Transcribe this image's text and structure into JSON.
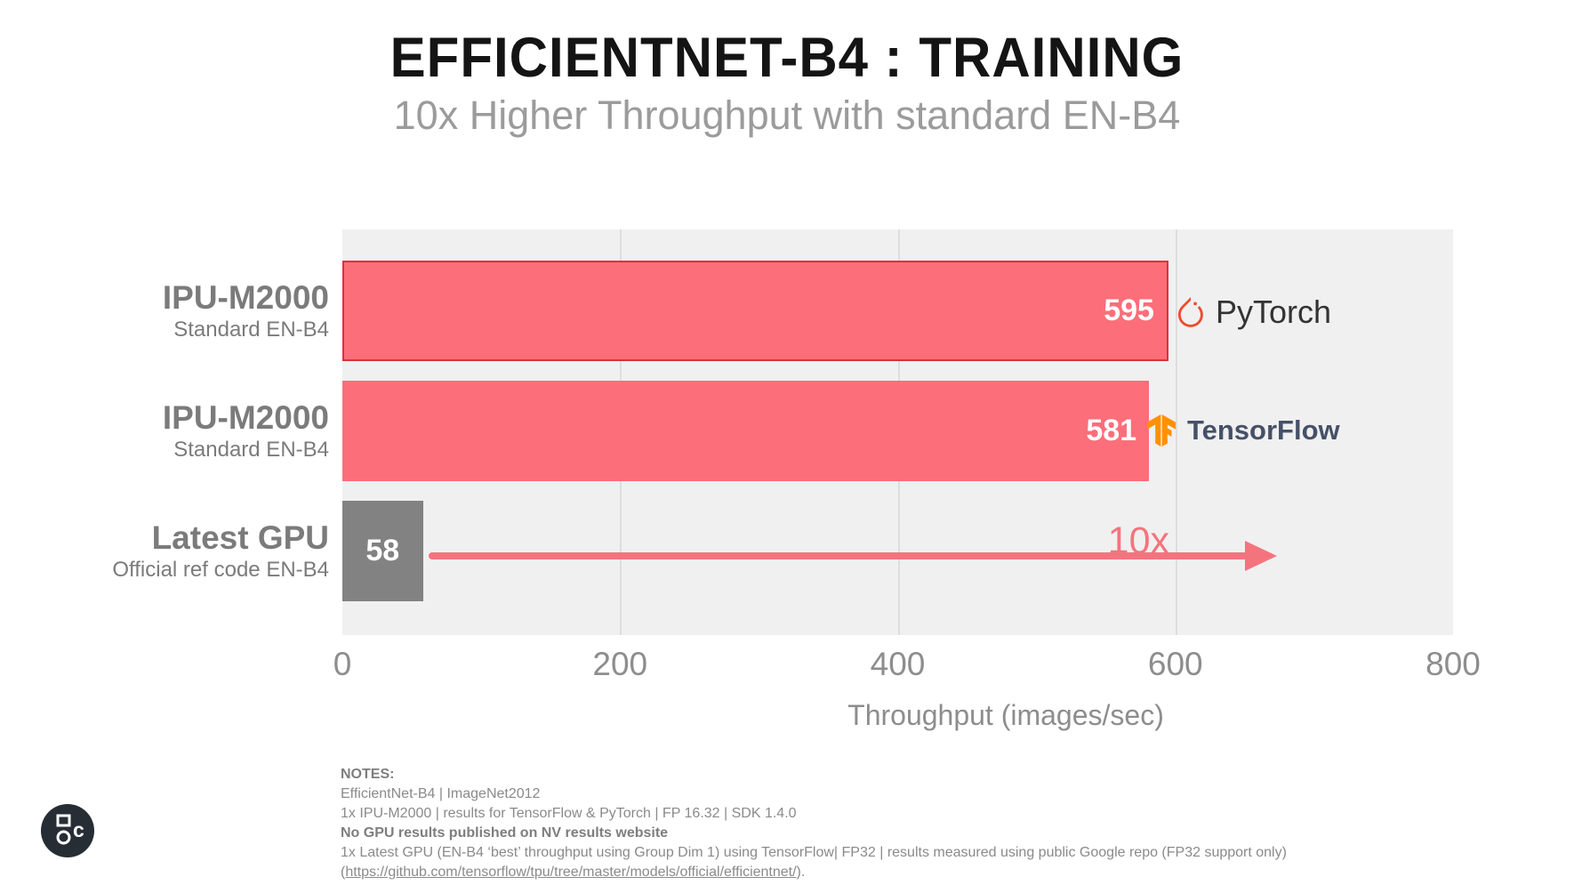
{
  "header": {
    "title": "EFFICIENTNET-B4 : TRAINING",
    "subtitle": "10x Higher Throughput with standard EN-B4"
  },
  "chart_data": {
    "type": "bar",
    "orientation": "horizontal",
    "title": "EFFICIENTNET-B4 : TRAINING",
    "subtitle": "10x Higher Throughput with standard EN-B4",
    "categories": [
      "IPU-M2000 (Standard EN-B4, PyTorch)",
      "IPU-M2000 (Standard EN-B4, TensorFlow)",
      "Latest GPU (Official ref code EN-B4)"
    ],
    "values": [
      595,
      581,
      58
    ],
    "xlabel": "Throughput (images/sec)",
    "xlim": [
      0,
      800
    ],
    "xticks": [
      0,
      200,
      400,
      600,
      800
    ],
    "grid": "vertical",
    "annotation": "10x",
    "bar_colors": [
      "#fc6e79",
      "#fc6e79",
      "#828282"
    ]
  },
  "rows": [
    {
      "label": "IPU-M2000",
      "sublabel": "Standard EN-B4",
      "value": "595",
      "framework": "PyTorch"
    },
    {
      "label": "IPU-M2000",
      "sublabel": "Standard EN-B4",
      "value": "581",
      "framework": "TensorFlow"
    },
    {
      "label": "Latest GPU",
      "sublabel": "Official ref code EN-B4",
      "value": "58",
      "annotation": "10x"
    }
  ],
  "axis": {
    "xlabel": "Throughput (images/sec)"
  },
  "logos": {
    "pytorch": "PyTorch",
    "tensorflow": "TensorFlow"
  },
  "notes": {
    "heading": "NOTES:",
    "lines": [
      {
        "text": "EfficientNet-B4 | ImageNet2012",
        "bold": false
      },
      {
        "text": "1x IPU-M2000 | results for TensorFlow & PyTorch | FP 16.32 | SDK 1.4.0",
        "bold": false
      },
      {
        "text": "No GPU results published on NV results website",
        "bold": true
      },
      {
        "text": "1x Latest GPU (EN-B4 ‘best’ throughput using Group Dim 1) using TensorFlow| FP32 | results measured using public Google repo (FP32 support only)",
        "bold": false
      }
    ],
    "link_prefix": "(",
    "link": "https://github.com/tensorflow/tpu/tree/master/models/official/efficientnet/",
    "link_suffix": ")."
  },
  "colors": {
    "bar_coral": "#fc6e79",
    "bar_border_red": "#d6333e",
    "bar_gray": "#828282",
    "arrow_coral": "#f4747e",
    "plot_bg": "#f0f0f1",
    "gridline": "#dedede",
    "pytorch_flame": "#ee4c2c",
    "tensorflow_orange": "#ff9100",
    "text_gray": "#7b7b7b"
  }
}
